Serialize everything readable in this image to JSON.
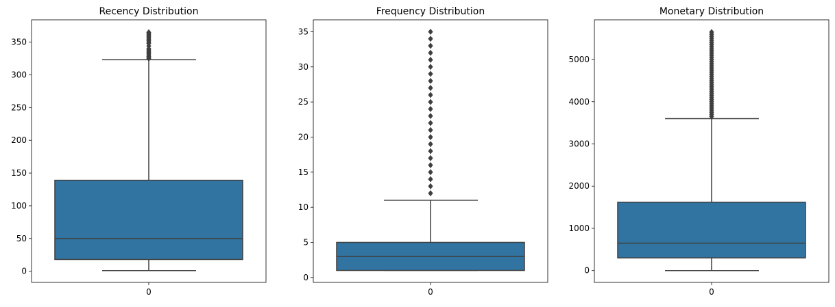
{
  "colors": {
    "box": "#3274a1",
    "line": "#3f3f3f",
    "axis": "#000000",
    "background": "#ffffff"
  },
  "chart_data": [
    {
      "type": "box",
      "title": "Recency Distribution",
      "xlabel": "",
      "ylabel": "",
      "x_ticks": [
        "0"
      ],
      "ylim": [
        -17,
        384
      ],
      "y_ticks": [
        0,
        50,
        100,
        150,
        200,
        250,
        300,
        350
      ],
      "grid": false,
      "stats": {
        "whisker_low": 1,
        "q1": 18,
        "median": 50,
        "q3": 139,
        "whisker_high": 323
      },
      "outliers": [
        325,
        327,
        328,
        330,
        332,
        334,
        336,
        338,
        340,
        344,
        348,
        350,
        352,
        354,
        356,
        358,
        360,
        362,
        364,
        365
      ]
    },
    {
      "type": "box",
      "title": "Frequency Distribution",
      "xlabel": "",
      "ylabel": "",
      "x_ticks": [
        "0"
      ],
      "ylim": [
        -0.7,
        36.7
      ],
      "y_ticks": [
        0,
        5,
        10,
        15,
        20,
        25,
        30,
        35
      ],
      "grid": false,
      "stats": {
        "whisker_low": 1,
        "q1": 1,
        "median": 3,
        "q3": 5,
        "whisker_high": 11
      },
      "outliers": [
        12,
        13,
        14,
        15,
        16,
        17,
        18,
        19,
        20,
        21,
        22,
        23,
        24,
        25,
        26,
        27,
        28,
        29,
        30,
        31,
        32,
        33,
        34,
        35
      ]
    },
    {
      "type": "box",
      "title": "Monetary Distribution",
      "xlabel": "",
      "ylabel": "",
      "x_ticks": [
        "0"
      ],
      "ylim": [
        -280,
        5940
      ],
      "y_ticks": [
        0,
        1000,
        2000,
        3000,
        4000,
        5000
      ],
      "grid": false,
      "stats": {
        "whisker_low": 0,
        "q1": 300,
        "median": 650,
        "q3": 1620,
        "whisker_high": 3600
      },
      "outliers": [
        3650,
        3700,
        3750,
        3800,
        3850,
        3900,
        3950,
        4000,
        4050,
        4100,
        4150,
        4200,
        4250,
        4300,
        4350,
        4400,
        4450,
        4500,
        4550,
        4600,
        4650,
        4700,
        4750,
        4800,
        4850,
        4900,
        4950,
        5000,
        5050,
        5100,
        5150,
        5200,
        5250,
        5300,
        5350,
        5400,
        5450,
        5500,
        5550,
        5600,
        5650
      ]
    }
  ]
}
